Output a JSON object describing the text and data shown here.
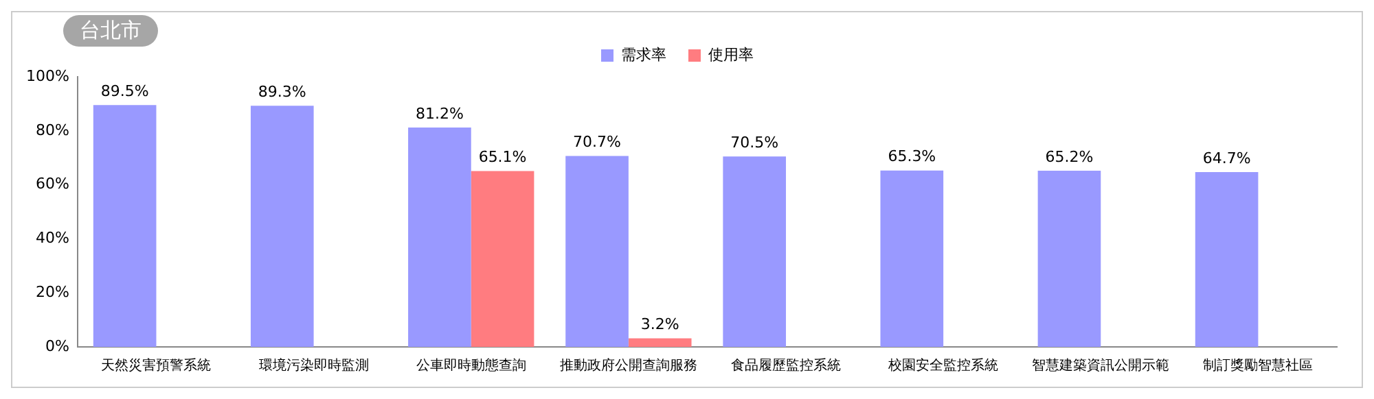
{
  "chart_data": {
    "type": "bar",
    "title": "台北市",
    "categories": [
      "天然災害預警系統",
      "環境污染即時監測",
      "公車即時動態查詢",
      "推動政府公開查詢服務",
      "食品履歷監控系統",
      "校園安全監控系統",
      "智慧建築資訊公開示範",
      "制訂獎勵智慧社區"
    ],
    "series": [
      {
        "name": "需求率",
        "color": "#9999ff",
        "values": [
          89.5,
          89.3,
          81.2,
          70.7,
          70.5,
          65.3,
          65.2,
          64.7
        ],
        "value_labels": [
          "89.5%",
          "89.3%",
          "81.2%",
          "70.7%",
          "70.5%",
          "65.3%",
          "65.2%",
          "64.7%"
        ]
      },
      {
        "name": "使用率",
        "color": "#ff7c80",
        "values": [
          null,
          null,
          65.1,
          3.2,
          null,
          null,
          null,
          null
        ],
        "value_labels": [
          null,
          null,
          "65.1%",
          "3.2%",
          null,
          null,
          null,
          null
        ]
      }
    ],
    "ylim": [
      0,
      100
    ],
    "yticks": [
      {
        "value": 0,
        "label": "0%"
      },
      {
        "value": 20,
        "label": "20%"
      },
      {
        "value": 40,
        "label": "40%"
      },
      {
        "value": 60,
        "label": "60%"
      },
      {
        "value": 80,
        "label": "80%"
      },
      {
        "value": 100,
        "label": "100%"
      }
    ],
    "grid": false,
    "legend": "top"
  }
}
